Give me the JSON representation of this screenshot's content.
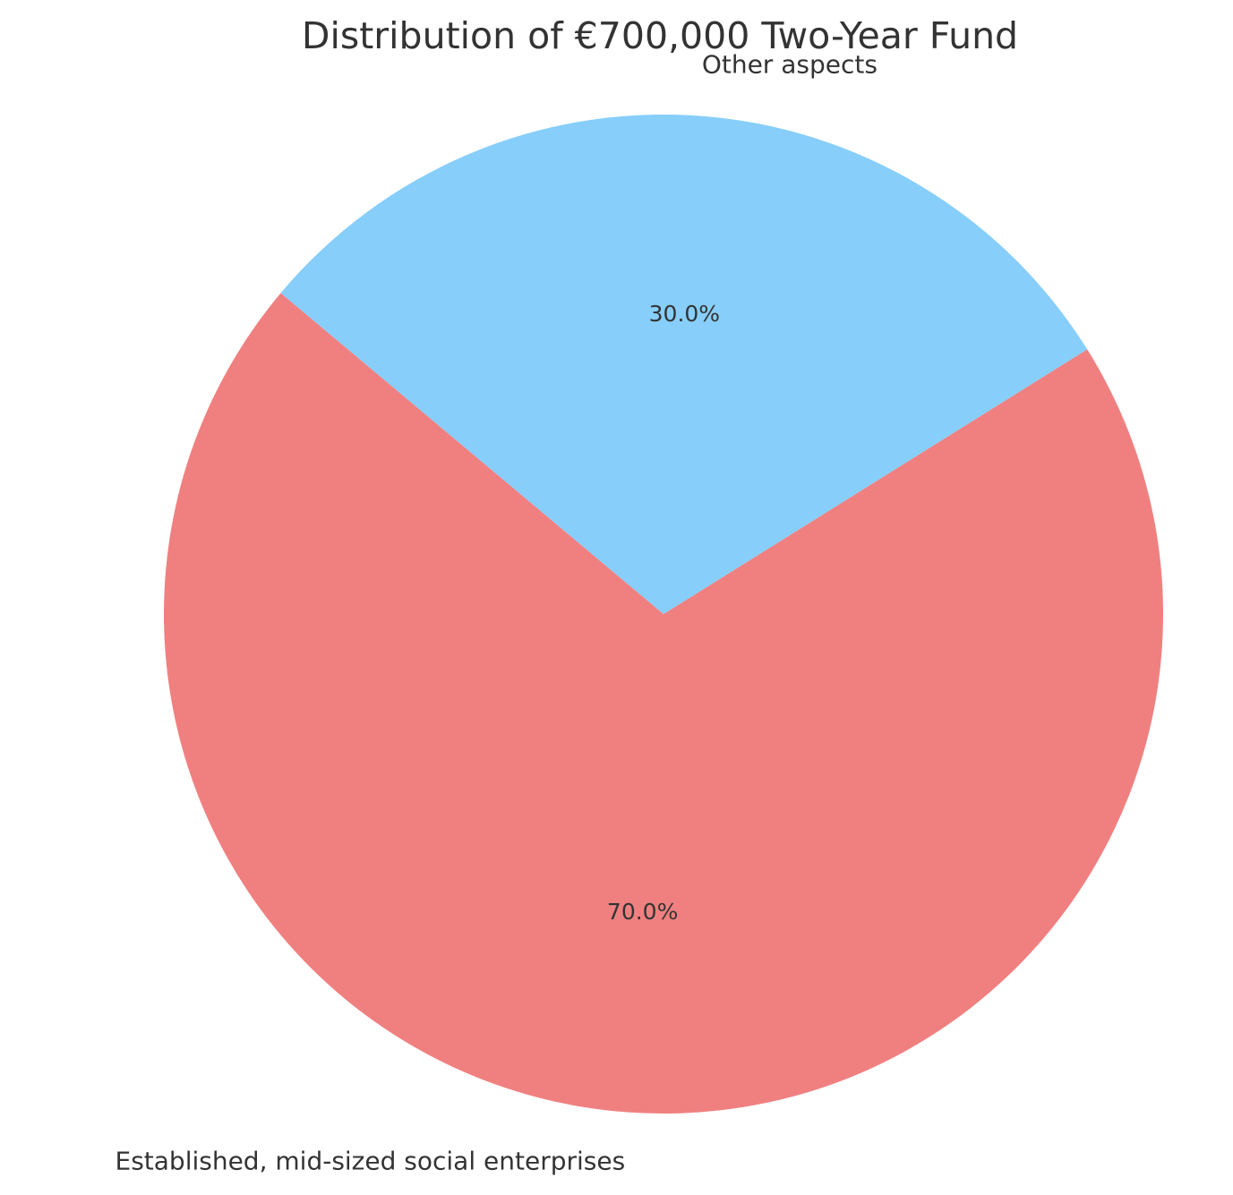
{
  "chart_data": {
    "type": "pie",
    "title": "Distribution of €700,000 Two-Year Fund",
    "labels": [
      "Established, mid-sized social enterprises",
      "Other aspects"
    ],
    "values": [
      70,
      30
    ],
    "percent_labels": [
      "70.0%",
      "30.0%"
    ],
    "colors": [
      "#f08080",
      "#87cefa"
    ],
    "start_angle_deg": 140,
    "direction": "counterclockwise",
    "legend": "none"
  }
}
